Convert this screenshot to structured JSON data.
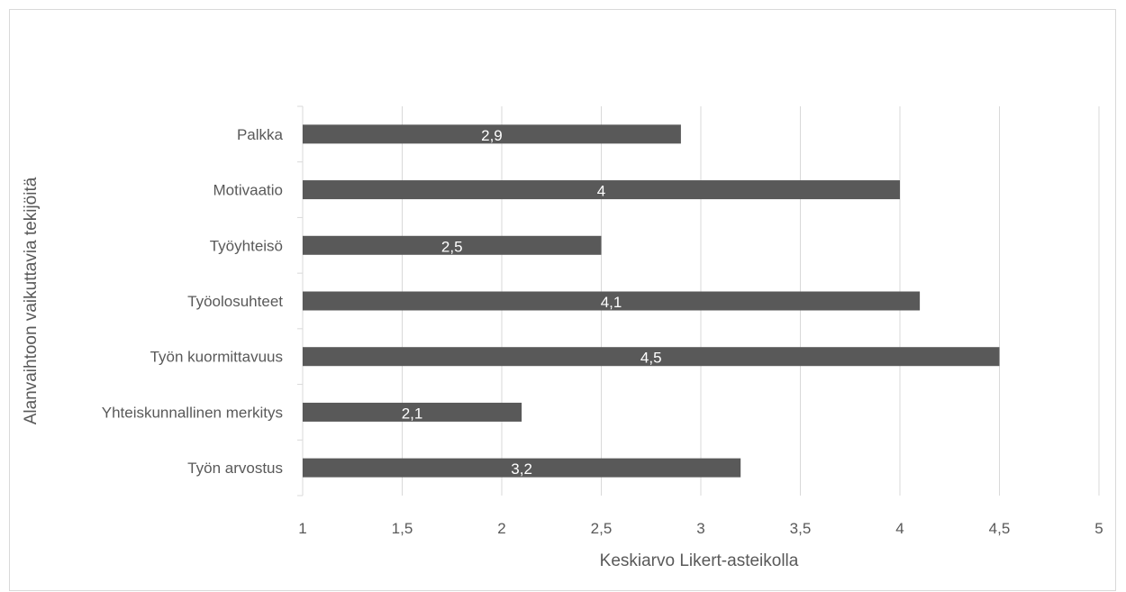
{
  "chart_data": {
    "type": "bar",
    "orientation": "horizontal",
    "categories": [
      "Palkka",
      "Motivaatio",
      "Työyhteisö",
      "Työolosuhteet",
      "Työn kuormittavuus",
      "Yhteiskunnallinen merkitys",
      "Työn arvostus"
    ],
    "values": [
      2.9,
      4,
      2.5,
      4.1,
      4.5,
      2.1,
      3.2
    ],
    "data_labels": [
      "2,9",
      "4",
      "2,5",
      "4,1",
      "4,5",
      "2,1",
      "3,2"
    ],
    "xlim": [
      1,
      5
    ],
    "x_ticks": [
      1,
      1.5,
      2,
      2.5,
      3,
      3.5,
      4,
      4.5,
      5
    ],
    "x_tick_labels": [
      "1",
      "1,5",
      "2",
      "2,5",
      "3",
      "3,5",
      "4",
      "4,5",
      "5"
    ],
    "xlabel": "Keskiarvo Likert-asteikolla",
    "ylabel": "Alanvaihtoon vaikuttavia tekijöitä",
    "grid": "vertical",
    "bar_color": "#595959",
    "grid_color": "#d9d9d9"
  }
}
